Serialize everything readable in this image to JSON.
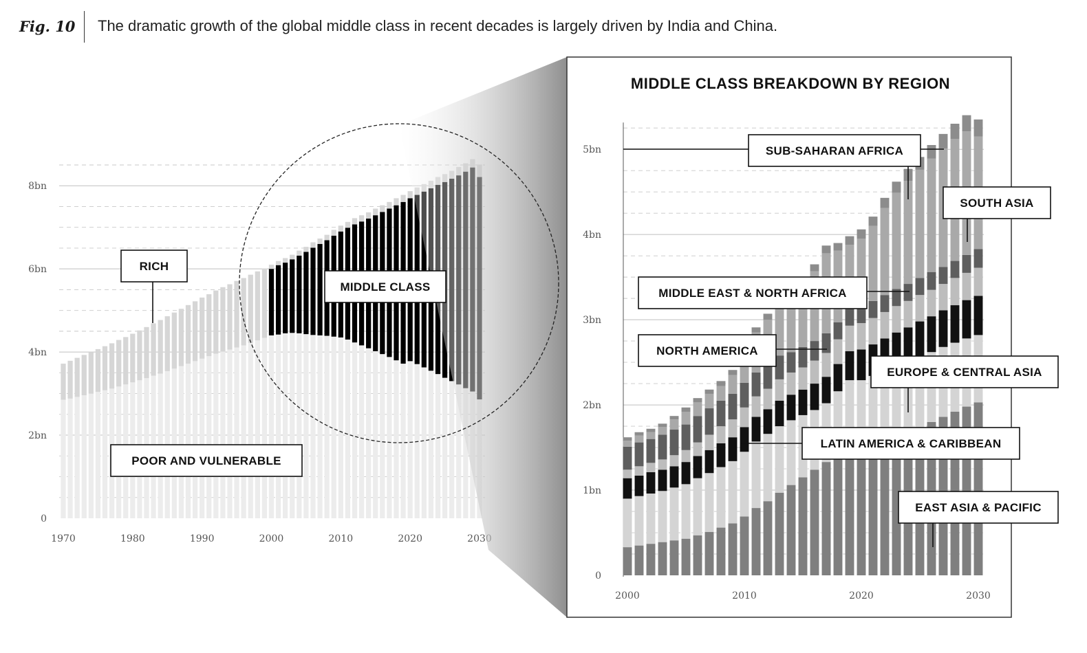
{
  "figure": {
    "label": "Fig. 10",
    "caption": "The dramatic growth of the global middle class in recent decades is largely driven by India and China."
  },
  "chart_data": [
    {
      "type": "bar",
      "stacked": true,
      "title": "",
      "x": [
        1970,
        1971,
        1972,
        1973,
        1974,
        1975,
        1976,
        1977,
        1978,
        1979,
        1980,
        1981,
        1982,
        1983,
        1984,
        1985,
        1986,
        1987,
        1988,
        1989,
        1990,
        1991,
        1992,
        1993,
        1994,
        1995,
        1996,
        1997,
        1998,
        1999,
        2000,
        2001,
        2002,
        2003,
        2004,
        2005,
        2006,
        2007,
        2008,
        2009,
        2010,
        2011,
        2012,
        2013,
        2014,
        2015,
        2016,
        2017,
        2018,
        2019,
        2020,
        2021,
        2022,
        2023,
        2024,
        2025,
        2026,
        2027,
        2028,
        2029,
        2030
      ],
      "series": [
        {
          "name": "POOR AND VULNERABLE",
          "color": "#ececec",
          "values": [
            2.85,
            2.88,
            2.92,
            2.96,
            3.0,
            3.04,
            3.08,
            3.12,
            3.17,
            3.22,
            3.27,
            3.32,
            3.37,
            3.43,
            3.48,
            3.54,
            3.6,
            3.66,
            3.72,
            3.78,
            3.84,
            3.9,
            3.96,
            4.01,
            4.06,
            4.11,
            4.16,
            4.22,
            4.28,
            4.34,
            4.4,
            4.42,
            4.45,
            4.46,
            4.45,
            4.43,
            4.41,
            4.4,
            4.39,
            4.37,
            4.35,
            4.3,
            4.23,
            4.16,
            4.09,
            4.02,
            3.95,
            3.88,
            3.8,
            3.72,
            3.78,
            3.71,
            3.63,
            3.55,
            3.47,
            3.38,
            3.3,
            3.22,
            3.13,
            3.05,
            2.86
          ]
        },
        {
          "name": "MIDDLE CLASS",
          "color": "#000000",
          "values": [
            0,
            0,
            0,
            0,
            0,
            0,
            0,
            0,
            0,
            0,
            0,
            0,
            0,
            0,
            0,
            0,
            0,
            0,
            0,
            0,
            0,
            0,
            0,
            0,
            0,
            0,
            0,
            0,
            0,
            0,
            1.6,
            1.67,
            1.7,
            1.77,
            1.87,
            1.98,
            2.1,
            2.2,
            2.3,
            2.43,
            2.55,
            2.69,
            2.84,
            2.98,
            3.12,
            3.27,
            3.42,
            3.57,
            3.73,
            3.89,
            3.92,
            4.07,
            4.23,
            4.39,
            4.55,
            4.71,
            4.87,
            5.03,
            5.21,
            5.39,
            5.35
          ]
        },
        {
          "name": "RICH",
          "color": "#d6d6d6",
          "values": [
            0.87,
            0.91,
            0.94,
            0.97,
            1.0,
            1.03,
            1.06,
            1.09,
            1.12,
            1.14,
            1.17,
            1.2,
            1.23,
            1.26,
            1.29,
            1.32,
            1.35,
            1.38,
            1.41,
            1.44,
            1.47,
            1.49,
            1.52,
            1.55,
            1.57,
            1.6,
            1.62,
            1.64,
            1.66,
            1.67,
            0.1,
            0.1,
            0.11,
            0.11,
            0.12,
            0.12,
            0.13,
            0.13,
            0.13,
            0.14,
            0.14,
            0.14,
            0.15,
            0.15,
            0.15,
            0.16,
            0.16,
            0.16,
            0.17,
            0.17,
            0.17,
            0.18,
            0.18,
            0.18,
            0.19,
            0.19,
            0.19,
            0.2,
            0.2,
            0.2,
            0.3
          ]
        }
      ],
      "annotations": [
        "RICH",
        "MIDDLE CLASS",
        "POOR AND VULNERABLE"
      ],
      "x_tick_labels": [
        "1970",
        "1980",
        "1990",
        "2000",
        "2010",
        "2020",
        "2030"
      ],
      "y_tick_labels": [
        "0",
        "2bn",
        "4bn",
        "6bn",
        "8bn"
      ],
      "ylim": [
        0,
        8.5
      ],
      "grid": true
    },
    {
      "type": "bar",
      "stacked": true,
      "title": "MIDDLE CLASS BREAKDOWN BY REGION",
      "x": [
        2000,
        2001,
        2002,
        2003,
        2004,
        2005,
        2006,
        2007,
        2008,
        2009,
        2010,
        2011,
        2012,
        2013,
        2014,
        2015,
        2016,
        2017,
        2018,
        2019,
        2020,
        2021,
        2022,
        2023,
        2024,
        2025,
        2026,
        2027,
        2028,
        2029,
        2030
      ],
      "series": [
        {
          "name": "EAST ASIA & PACIFIC",
          "color": "#7f7f7f",
          "values": [
            0.33,
            0.35,
            0.37,
            0.39,
            0.41,
            0.43,
            0.47,
            0.51,
            0.56,
            0.61,
            0.69,
            0.79,
            0.87,
            0.97,
            1.06,
            1.15,
            1.24,
            1.33,
            1.41,
            1.49,
            1.37,
            1.46,
            1.54,
            1.61,
            1.67,
            1.74,
            1.8,
            1.86,
            1.92,
            1.98,
            2.03
          ]
        },
        {
          "name": "LATIN AMERICA & CARIBBEAN",
          "color": "#d4d4d4",
          "values": [
            0.57,
            0.58,
            0.59,
            0.6,
            0.62,
            0.64,
            0.67,
            0.69,
            0.71,
            0.73,
            0.76,
            0.78,
            0.79,
            0.78,
            0.76,
            0.73,
            0.7,
            0.69,
            0.75,
            0.8,
            0.92,
            0.88,
            0.86,
            0.85,
            0.84,
            0.83,
            0.82,
            0.82,
            0.81,
            0.8,
            0.79
          ]
        },
        {
          "name": "NORTH AMERICA",
          "color": "#111111",
          "values": [
            0.24,
            0.24,
            0.25,
            0.25,
            0.25,
            0.26,
            0.26,
            0.27,
            0.28,
            0.28,
            0.29,
            0.29,
            0.29,
            0.3,
            0.3,
            0.3,
            0.31,
            0.31,
            0.32,
            0.34,
            0.36,
            0.37,
            0.38,
            0.39,
            0.4,
            0.41,
            0.42,
            0.43,
            0.44,
            0.45,
            0.46
          ]
        },
        {
          "name": "EUROPE & CENTRAL ASIA",
          "color": "#bdbdbd",
          "values": [
            0.1,
            0.11,
            0.11,
            0.12,
            0.13,
            0.14,
            0.16,
            0.18,
            0.2,
            0.21,
            0.23,
            0.24,
            0.24,
            0.25,
            0.26,
            0.26,
            0.27,
            0.28,
            0.29,
            0.3,
            0.31,
            0.31,
            0.31,
            0.31,
            0.31,
            0.31,
            0.31,
            0.31,
            0.32,
            0.32,
            0.33
          ]
        },
        {
          "name": "MIDDLE EAST & NORTH AFRICA",
          "color": "#5e5e5e",
          "values": [
            0.27,
            0.28,
            0.28,
            0.29,
            0.3,
            0.3,
            0.31,
            0.31,
            0.3,
            0.3,
            0.29,
            0.28,
            0.28,
            0.28,
            0.24,
            0.24,
            0.23,
            0.23,
            0.2,
            0.2,
            0.2,
            0.2,
            0.2,
            0.2,
            0.2,
            0.2,
            0.21,
            0.2,
            0.2,
            0.21,
            0.22
          ]
        },
        {
          "name": "SOUTH ASIA",
          "color": "#a9a9a9",
          "values": [
            0.07,
            0.08,
            0.08,
            0.09,
            0.12,
            0.15,
            0.16,
            0.17,
            0.17,
            0.22,
            0.34,
            0.47,
            0.53,
            0.58,
            0.64,
            0.7,
            0.82,
            0.94,
            0.84,
            0.75,
            0.79,
            0.88,
            1.02,
            1.13,
            1.21,
            1.27,
            1.33,
            1.39,
            1.43,
            1.45,
            1.32
          ]
        },
        {
          "name": "SUB-SAHARAN AFRICA",
          "color": "#8c8c8c",
          "values": [
            0.04,
            0.04,
            0.04,
            0.04,
            0.04,
            0.05,
            0.05,
            0.05,
            0.06,
            0.06,
            0.06,
            0.06,
            0.07,
            0.07,
            0.08,
            0.08,
            0.08,
            0.09,
            0.09,
            0.1,
            0.11,
            0.11,
            0.12,
            0.13,
            0.14,
            0.15,
            0.16,
            0.17,
            0.18,
            0.19,
            0.2
          ]
        }
      ],
      "x_tick_labels": [
        "2000",
        "2010",
        "2020",
        "2030"
      ],
      "y_tick_labels": [
        "0",
        "1bn",
        "2bn",
        "3bn",
        "4bn",
        "5bn"
      ],
      "ylim": [
        0,
        5.3
      ],
      "grid": true
    }
  ]
}
